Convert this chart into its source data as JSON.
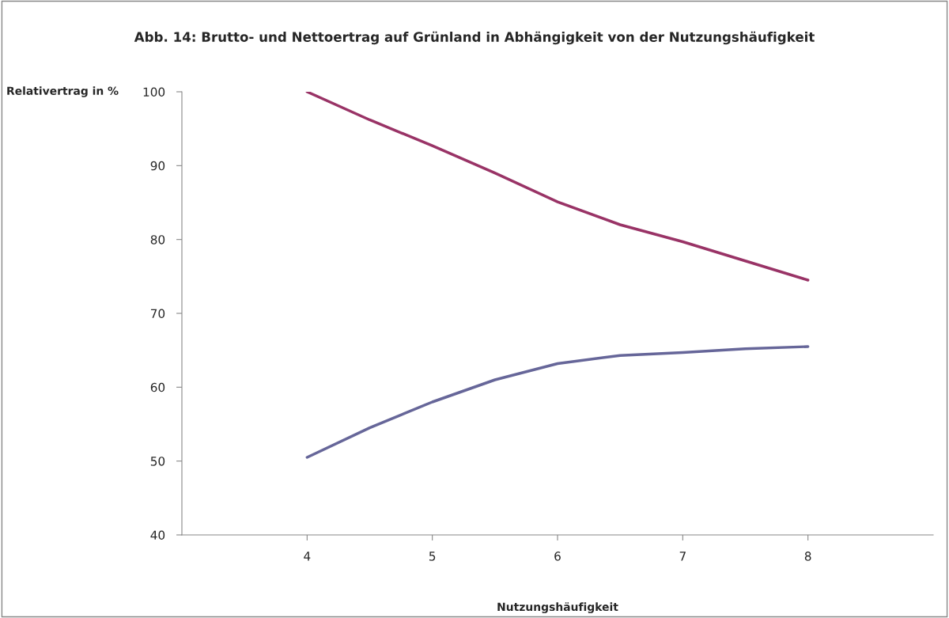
{
  "chart_data": {
    "type": "line",
    "title": "Abb. 14: Brutto- und Nettoertrag auf Grünland in Abhängigkeit von der Nutzungshäufigkeit",
    "xlabel": "Nutzungshäufigkeit",
    "ylabel": "Relativertrag in %",
    "series": [
      {
        "color": "#993366",
        "x": [
          4,
          4.5,
          5,
          5.5,
          6,
          6.5,
          7,
          7.5,
          8
        ],
        "values": [
          100,
          96.2,
          92.7,
          89.0,
          85.1,
          82.0,
          79.7,
          77.1,
          74.5
        ]
      },
      {
        "color": "#666699",
        "x": [
          4,
          4.5,
          5,
          5.5,
          6,
          6.5,
          7,
          7.5,
          8
        ],
        "values": [
          50.5,
          54.5,
          58.0,
          61.0,
          63.2,
          64.3,
          64.7,
          65.2,
          65.5
        ]
      }
    ],
    "xlim": [
      3,
      9
    ],
    "xticks": [
      4,
      5,
      6,
      7,
      8
    ],
    "ylim": [
      40,
      100
    ],
    "yticks": [
      40,
      50,
      60,
      70,
      80,
      90,
      100
    ],
    "grid": false,
    "legend": false
  }
}
